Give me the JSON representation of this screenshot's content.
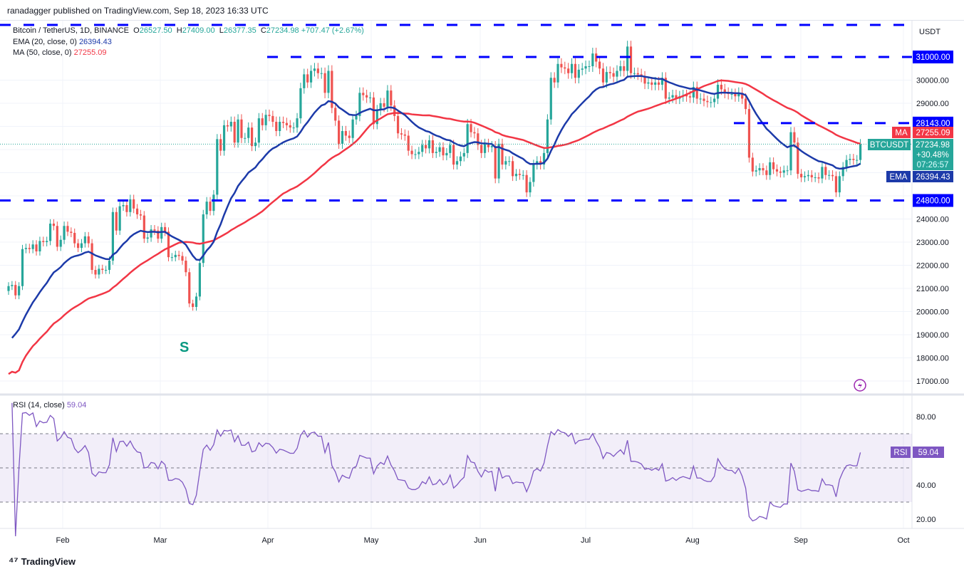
{
  "header": {
    "published": "ranadagger published on TradingView.com, Sep 18, 2023 16:33 UTC"
  },
  "legend": {
    "symbol": "Bitcoin / TetherUS, 1D, BINANCE",
    "o_label": "O",
    "open": "26527.50",
    "h_label": "H",
    "high": "27409.00",
    "l_label": "L",
    "low": "26377.35",
    "c_label": "C",
    "close": "27234.98",
    "change": "+707.47 (+2.67%)",
    "ema_label": "EMA (20, close, 0)",
    "ema_value": "26394.43",
    "ma_label": "MA (50, close, 0)",
    "ma_value": "27255.09",
    "rsi_label": "RSI (14, close)",
    "rsi_value": "59.04"
  },
  "axis": {
    "currency": "USDT",
    "price_ticks": [
      "30000.00",
      "29000.00",
      "24000.00",
      "23000.00",
      "22000.00",
      "21000.00",
      "20000.00",
      "19000.00",
      "18000.00",
      "17000.00"
    ],
    "rsi_ticks": [
      "80.00",
      "40.00",
      "20.00"
    ],
    "months": [
      "Feb",
      "Mar",
      "Apr",
      "May",
      "Jun",
      "Jul",
      "Aug",
      "Sep",
      "Oct"
    ]
  },
  "badges": {
    "level_31000": "31000.00",
    "level_28143": "28143.00",
    "level_24800": "24800.00",
    "ma_tag": "MA",
    "ma_price": "27255.09",
    "symbol_tag": "BTCUSDT",
    "last_price": "27234.98",
    "last_change": "+30.48%",
    "countdown": "07:26:57",
    "ema_tag": "EMA",
    "ema_price": "26394.43",
    "rsi_tag": "RSI",
    "rsi_price": "59.04"
  },
  "annotations": {
    "s_label": "S"
  },
  "footer": {
    "brand": "TradingView"
  },
  "colors": {
    "up": "#26a69a",
    "down": "#ef5350",
    "ema": "#1c3aa9",
    "ma": "#f23645",
    "rsi": "#7e57c2",
    "levels": "#0000ff"
  },
  "chart_data": {
    "type": "candlestick",
    "symbol": "BTCUSDT",
    "interval": "1D",
    "start_date": "2023-01-16",
    "end_date": "2023-09-18",
    "ylim": [
      16700,
      32200
    ],
    "rsi_ylim": [
      15,
      90
    ],
    "rsi_bands": [
      30,
      70
    ],
    "horizontal_levels": [
      32385,
      31000,
      28143,
      24800
    ],
    "closes": [
      21100,
      21150,
      20700,
      21100,
      22700,
      22750,
      22700,
      22900,
      22600,
      23050,
      23000,
      23050,
      23800,
      23700,
      22800,
      23100,
      23700,
      23450,
      23400,
      22950,
      22750,
      22950,
      23250,
      22950,
      21800,
      21600,
      21850,
      21800,
      21800,
      22200,
      24300,
      23500,
      24550,
      24600,
      24300,
      24850,
      24450,
      24200,
      24150,
      23150,
      23200,
      23550,
      23500,
      23150,
      23650,
      23450,
      22350,
      22350,
      22450,
      22400,
      22200,
      21700,
      20350,
      20200,
      20650,
      22100,
      24200,
      24750,
      24350,
      25050,
      27450,
      26950,
      28050,
      28000,
      28200,
      27300,
      28300,
      27500,
      27500,
      27950,
      27150,
      27300,
      28350,
      28050,
      28500,
      28450,
      28200,
      27800,
      28200,
      28150,
      28050,
      27950,
      27950,
      28350,
      29650,
      30250,
      29900,
      30400,
      30500,
      30300,
      30300,
      29450,
      30400,
      28800,
      28250,
      27250,
      27800,
      27600,
      27500,
      28300,
      28450,
      29450,
      29350,
      29250,
      29250,
      28100,
      28700,
      29000,
      28850,
      29550,
      28900,
      28450,
      27700,
      27650,
      27600,
      26950,
      26800,
      26800,
      26900,
      27200,
      27050,
      27400,
      26850,
      26900,
      27100,
      26750,
      26850,
      27200,
      26350,
      26500,
      26700,
      26850,
      28100,
      27750,
      27700,
      27200,
      26850,
      27250,
      27100,
      27150,
      25750,
      27250,
      26350,
      26500,
      26500,
      25850,
      25950,
      25900,
      25900,
      25150,
      25600,
      26350,
      26500,
      26350,
      26850,
      28300,
      30100,
      29900,
      30700,
      30550,
      30500,
      30300,
      30700,
      30100,
      30450,
      30500,
      30600,
      30600,
      31150,
      30800,
      30500,
      29900,
      30350,
      30300,
      30150,
      30400,
      30600,
      30400,
      31450,
      30300,
      30300,
      30250,
      30150,
      29850,
      29900,
      29800,
      29900,
      29800,
      30100,
      29200,
      29250,
      29350,
      29200,
      29300,
      29350,
      29300,
      29250,
      29700,
      29200,
      29200,
      29100,
      29050,
      29050,
      29200,
      29800,
      29600,
      29450,
      29400,
      29400,
      29300,
      29450,
      29200,
      28750,
      26650,
      26050,
      26100,
      26200,
      26100,
      25900,
      26450,
      26150,
      26050,
      26000,
      26100,
      26100,
      27750,
      27300,
      25950,
      25800,
      25850,
      25900,
      25800,
      25800,
      25750,
      26250,
      25900,
      25900,
      25850,
      25150,
      25850,
      26250,
      26550,
      26600,
      26550,
      26550,
      27235
    ]
  }
}
